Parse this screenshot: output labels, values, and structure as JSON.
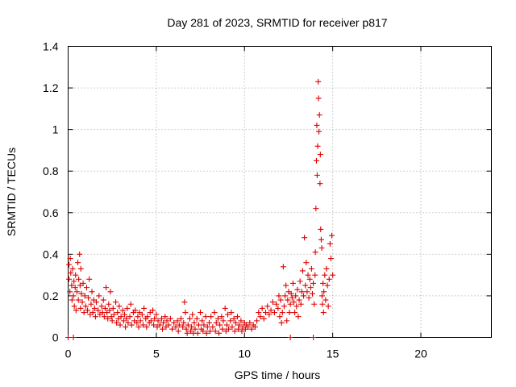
{
  "chart_data": {
    "type": "scatter",
    "title": "Day 281 of 2023, SRMTID for receiver p817",
    "xlabel": "GPS time / hours",
    "ylabel": "SRMTID / TECUs",
    "xlim": [
      0,
      24
    ],
    "ylim": [
      0,
      1.4
    ],
    "x_ticks": [
      0,
      5,
      10,
      15,
      20
    ],
    "x_tick_labels": [
      "0",
      "5",
      "10",
      "15",
      "20"
    ],
    "y_ticks": [
      0,
      0.2,
      0.4,
      0.6,
      0.8,
      1,
      1.2,
      1.4
    ],
    "y_tick_labels": [
      "0",
      "0.2",
      "0.4",
      "0.6",
      "0.8",
      "1",
      "1.2",
      "1.4"
    ],
    "grid": true,
    "marker": "plus",
    "series": [
      {
        "name": "p817",
        "color": "#dd0000",
        "points": [
          [
            0.0,
            0.0
          ],
          [
            0.05,
            0.35
          ],
          [
            0.05,
            0.28
          ],
          [
            0.1,
            0.22
          ],
          [
            0.12,
            0.38
          ],
          [
            0.15,
            0.31
          ],
          [
            0.2,
            0.25
          ],
          [
            0.22,
            0.18
          ],
          [
            0.25,
            0.33
          ],
          [
            0.3,
            0.2
          ],
          [
            0.33,
            0.27
          ],
          [
            0.35,
            0.15
          ],
          [
            0.4,
            0.24
          ],
          [
            0.42,
            0.3
          ],
          [
            0.45,
            0.13
          ],
          [
            0.5,
            0.22
          ],
          [
            0.55,
            0.36
          ],
          [
            0.58,
            0.18
          ],
          [
            0.6,
            0.28
          ],
          [
            0.65,
            0.4
          ],
          [
            0.68,
            0.25
          ],
          [
            0.7,
            0.14
          ],
          [
            0.72,
            0.33
          ],
          [
            0.75,
            0.21
          ],
          [
            0.8,
            0.17
          ],
          [
            0.85,
            0.26
          ],
          [
            0.9,
            0.12
          ],
          [
            0.95,
            0.2
          ],
          [
            1.0,
            0.15
          ],
          [
            1.05,
            0.24
          ],
          [
            1.1,
            0.13
          ],
          [
            1.15,
            0.19
          ],
          [
            1.2,
            0.28
          ],
          [
            1.25,
            0.11
          ],
          [
            1.3,
            0.16
          ],
          [
            1.35,
            0.22
          ],
          [
            1.4,
            0.12
          ],
          [
            1.45,
            0.18
          ],
          [
            1.5,
            0.14
          ],
          [
            1.55,
            0.1
          ],
          [
            1.6,
            0.17
          ],
          [
            1.7,
            0.13
          ],
          [
            1.75,
            0.2
          ],
          [
            1.8,
            0.11
          ],
          [
            1.9,
            0.15
          ],
          [
            1.95,
            0.12
          ],
          [
            2.0,
            0.18
          ],
          [
            2.05,
            0.1
          ],
          [
            2.1,
            0.14
          ],
          [
            2.15,
            0.24
          ],
          [
            2.2,
            0.12
          ],
          [
            2.25,
            0.09
          ],
          [
            2.3,
            0.16
          ],
          [
            2.35,
            0.13
          ],
          [
            2.4,
            0.22
          ],
          [
            2.45,
            0.1
          ],
          [
            2.5,
            0.08
          ],
          [
            2.55,
            0.14
          ],
          [
            2.6,
            0.11
          ],
          [
            2.7,
            0.17
          ],
          [
            2.75,
            0.07
          ],
          [
            2.8,
            0.12
          ],
          [
            2.85,
            0.09
          ],
          [
            2.9,
            0.15
          ],
          [
            2.95,
            0.06
          ],
          [
            3.0,
            0.1
          ],
          [
            3.1,
            0.13
          ],
          [
            3.15,
            0.08
          ],
          [
            3.2,
            0.11
          ],
          [
            3.25,
            0.05
          ],
          [
            3.3,
            0.09
          ],
          [
            3.35,
            0.14
          ],
          [
            3.4,
            0.07
          ],
          [
            3.5,
            0.1
          ],
          [
            3.55,
            0.16
          ],
          [
            3.6,
            0.06
          ],
          [
            3.7,
            0.12
          ],
          [
            3.75,
            0.08
          ],
          [
            3.8,
            0.13
          ],
          [
            3.9,
            0.07
          ],
          [
            3.95,
            0.1
          ],
          [
            4.0,
            0.05
          ],
          [
            4.05,
            0.12
          ],
          [
            4.1,
            0.08
          ],
          [
            4.2,
            0.11
          ],
          [
            4.25,
            0.06
          ],
          [
            4.3,
            0.14
          ],
          [
            4.4,
            0.09
          ],
          [
            4.45,
            0.05
          ],
          [
            4.5,
            0.1
          ],
          [
            4.6,
            0.07
          ],
          [
            4.65,
            0.12
          ],
          [
            4.7,
            0.08
          ],
          [
            4.8,
            0.13
          ],
          [
            4.85,
            0.06
          ],
          [
            4.9,
            0.09
          ],
          [
            5.0,
            0.11
          ],
          [
            5.05,
            0.05
          ],
          [
            5.1,
            0.08
          ],
          [
            5.2,
            0.06
          ],
          [
            5.3,
            0.09
          ],
          [
            5.35,
            0.04
          ],
          [
            5.4,
            0.07
          ],
          [
            5.5,
            0.1
          ],
          [
            5.55,
            0.05
          ],
          [
            5.6,
            0.08
          ],
          [
            5.7,
            0.06
          ],
          [
            5.8,
            0.09
          ],
          [
            5.9,
            0.04
          ],
          [
            6.0,
            0.07
          ],
          [
            6.1,
            0.05
          ],
          [
            6.2,
            0.08
          ],
          [
            6.25,
            0.03
          ],
          [
            6.3,
            0.06
          ],
          [
            6.4,
            0.09
          ],
          [
            6.5,
            0.05
          ],
          [
            6.55,
            0.07
          ],
          [
            6.6,
            0.17
          ],
          [
            6.65,
            0.12
          ],
          [
            6.7,
            0.04
          ],
          [
            6.75,
            0.02
          ],
          [
            6.8,
            0.06
          ],
          [
            6.9,
            0.09
          ],
          [
            6.95,
            0.03
          ],
          [
            7.0,
            0.05
          ],
          [
            7.05,
            0.11
          ],
          [
            7.1,
            0.02
          ],
          [
            7.15,
            0.07
          ],
          [
            7.2,
            0.04
          ],
          [
            7.3,
            0.09
          ],
          [
            7.35,
            0.02
          ],
          [
            7.4,
            0.06
          ],
          [
            7.5,
            0.12
          ],
          [
            7.55,
            0.04
          ],
          [
            7.6,
            0.08
          ],
          [
            7.65,
            0.03
          ],
          [
            7.7,
            0.06
          ],
          [
            7.8,
            0.1
          ],
          [
            7.85,
            0.02
          ],
          [
            7.9,
            0.05
          ],
          [
            8.0,
            0.07
          ],
          [
            8.05,
            0.03
          ],
          [
            8.1,
            0.1
          ],
          [
            8.2,
            0.05
          ],
          [
            8.3,
            0.12
          ],
          [
            8.35,
            0.03
          ],
          [
            8.4,
            0.07
          ],
          [
            8.5,
            0.09
          ],
          [
            8.55,
            0.02
          ],
          [
            8.6,
            0.06
          ],
          [
            8.7,
            0.1
          ],
          [
            8.75,
            0.04
          ],
          [
            8.8,
            0.08
          ],
          [
            8.9,
            0.14
          ],
          [
            8.95,
            0.03
          ],
          [
            9.0,
            0.06
          ],
          [
            9.05,
            0.11
          ],
          [
            9.1,
            0.04
          ],
          [
            9.2,
            0.08
          ],
          [
            9.25,
            0.12
          ],
          [
            9.3,
            0.05
          ],
          [
            9.4,
            0.09
          ],
          [
            9.45,
            0.03
          ],
          [
            9.5,
            0.07
          ],
          [
            9.6,
            0.1
          ],
          [
            9.65,
            0.04
          ],
          [
            9.7,
            0.06
          ],
          [
            9.8,
            0.08
          ],
          [
            9.85,
            0.03
          ],
          [
            9.9,
            0.05
          ],
          [
            10.0,
            0.07
          ],
          [
            10.05,
            0.04
          ],
          [
            10.1,
            0.06
          ],
          [
            10.2,
            0.05
          ],
          [
            10.3,
            0.07
          ],
          [
            10.4,
            0.04
          ],
          [
            10.5,
            0.06
          ],
          [
            10.6,
            0.05
          ],
          [
            10.7,
            0.08
          ],
          [
            10.8,
            0.12
          ],
          [
            10.9,
            0.1
          ],
          [
            11.0,
            0.14
          ],
          [
            11.1,
            0.09
          ],
          [
            11.2,
            0.12
          ],
          [
            11.3,
            0.15
          ],
          [
            11.4,
            0.11
          ],
          [
            11.5,
            0.13
          ],
          [
            11.6,
            0.17
          ],
          [
            11.7,
            0.12
          ],
          [
            11.8,
            0.16
          ],
          [
            11.9,
            0.14
          ],
          [
            11.95,
            0.2
          ],
          [
            12.0,
            0.1
          ],
          [
            12.05,
            0.18
          ],
          [
            12.1,
            0.07
          ],
          [
            12.15,
            0.12
          ],
          [
            12.2,
            0.34
          ],
          [
            12.25,
            0.15
          ],
          [
            12.3,
            0.2
          ],
          [
            12.35,
            0.25
          ],
          [
            12.4,
            0.08
          ],
          [
            12.45,
            0.18
          ],
          [
            12.5,
            0.22
          ],
          [
            12.55,
            0.12
          ],
          [
            12.6,
            0.16
          ],
          [
            12.65,
            0.21
          ],
          [
            12.7,
            0.19
          ],
          [
            12.75,
            0.26
          ],
          [
            12.8,
            0.17
          ],
          [
            12.85,
            0.12
          ],
          [
            12.9,
            0.2
          ],
          [
            12.95,
            0.15
          ],
          [
            13.0,
            0.23
          ],
          [
            13.05,
            0.1
          ],
          [
            13.1,
            0.18
          ],
          [
            13.15,
            0.27
          ],
          [
            13.2,
            0.16
          ],
          [
            13.25,
            0.22
          ],
          [
            13.3,
            0.32
          ],
          [
            13.35,
            0.2
          ],
          [
            13.4,
            0.48
          ],
          [
            13.45,
            0.25
          ],
          [
            13.5,
            0.36
          ],
          [
            13.55,
            0.22
          ],
          [
            13.6,
            0.3
          ],
          [
            13.65,
            0.19
          ],
          [
            13.7,
            0.28
          ],
          [
            13.75,
            0.24
          ],
          [
            13.8,
            0.33
          ],
          [
            13.85,
            0.21
          ],
          [
            13.9,
            0.26
          ],
          [
            13.95,
            0.16
          ],
          [
            14.0,
            0.3
          ],
          [
            14.02,
            0.41
          ],
          [
            14.05,
            0.62
          ],
          [
            14.08,
            0.85
          ],
          [
            14.1,
            1.02
          ],
          [
            14.12,
            0.78
          ],
          [
            14.15,
            0.92
          ],
          [
            14.18,
            1.23
          ],
          [
            14.2,
            1.15
          ],
          [
            14.22,
            0.99
          ],
          [
            14.25,
            1.07
          ],
          [
            14.28,
            0.74
          ],
          [
            14.3,
            0.88
          ],
          [
            14.32,
            0.52
          ],
          [
            14.35,
            0.47
          ],
          [
            14.38,
            0.43
          ],
          [
            14.4,
            0.2
          ],
          [
            14.42,
            0.16
          ],
          [
            14.45,
            0.26
          ],
          [
            14.48,
            0.12
          ],
          [
            14.5,
            0.22
          ],
          [
            14.55,
            0.3
          ],
          [
            14.6,
            0.18
          ],
          [
            14.65,
            0.33
          ],
          [
            14.7,
            0.25
          ],
          [
            14.75,
            0.15
          ],
          [
            14.8,
            0.28
          ],
          [
            14.85,
            0.45
          ],
          [
            14.9,
            0.38
          ],
          [
            14.95,
            0.49
          ],
          [
            15.0,
            0.3
          ],
          [
            0.3,
            0.0
          ],
          [
            12.6,
            0.0
          ],
          [
            13.9,
            0.0
          ]
        ]
      }
    ]
  }
}
